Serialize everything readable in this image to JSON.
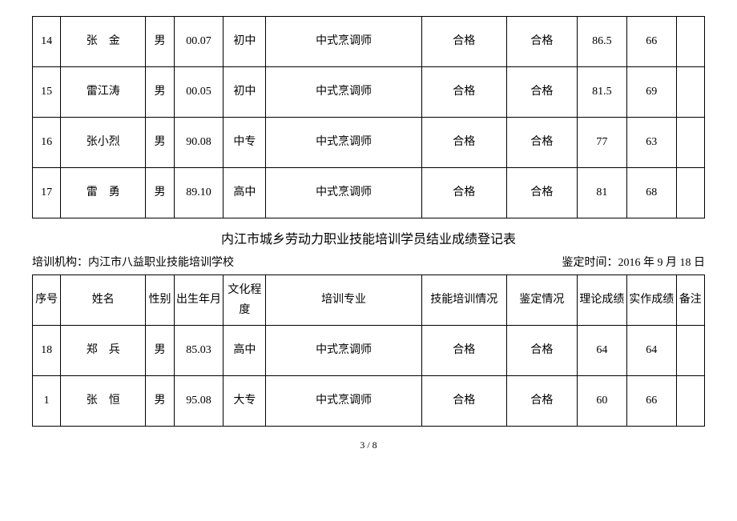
{
  "table1": {
    "rows": [
      {
        "seq": "14",
        "name": "张　金",
        "gender": "男",
        "birth": "00.07",
        "edu": "初中",
        "major": "中式烹调师",
        "skill": "合格",
        "eval": "合格",
        "theory": "86.5",
        "practice": "66",
        "remark": ""
      },
      {
        "seq": "15",
        "name": "雷江涛",
        "gender": "男",
        "birth": "00.05",
        "edu": "初中",
        "major": "中式烹调师",
        "skill": "合格",
        "eval": "合格",
        "theory": "81.5",
        "practice": "69",
        "remark": ""
      },
      {
        "seq": "16",
        "name": "张小烈",
        "gender": "男",
        "birth": "90.08",
        "edu": "中专",
        "major": "中式烹调师",
        "skill": "合格",
        "eval": "合格",
        "theory": "77",
        "practice": "63",
        "remark": ""
      },
      {
        "seq": "17",
        "name": "雷　勇",
        "gender": "男",
        "birth": "89.10",
        "edu": "高中",
        "major": "中式烹调师",
        "skill": "合格",
        "eval": "合格",
        "theory": "81",
        "practice": "68",
        "remark": ""
      }
    ]
  },
  "section_title": "内江市城乡劳动力职业技能培训学员结业成绩登记表",
  "info_left": "培训机构：内江市八益职业技能培训学校",
  "info_right": "鉴定时间：2016 年 9 月 18 日",
  "headers": {
    "seq": "序号",
    "name": "姓名",
    "gender": "性别",
    "birth": "出生年月",
    "edu": "文化程度",
    "major": "培训专业",
    "skill": "技能培训情况",
    "eval": "鉴定情况",
    "theory": "理论成绩",
    "practice": "实作成绩",
    "remark": "备注"
  },
  "table2": {
    "rows": [
      {
        "seq": "18",
        "name": "郑　兵",
        "gender": "男",
        "birth": "85.03",
        "edu": "高中",
        "major": "中式烹调师",
        "skill": "合格",
        "eval": "合格",
        "theory": "64",
        "practice": "64",
        "remark": ""
      },
      {
        "seq": "1",
        "name": "张　恒",
        "gender": "男",
        "birth": "95.08",
        "edu": "大专",
        "major": "中式烹调师",
        "skill": "合格",
        "eval": "合格",
        "theory": "60",
        "practice": "66",
        "remark": ""
      }
    ]
  },
  "page_number": "3 / 8"
}
